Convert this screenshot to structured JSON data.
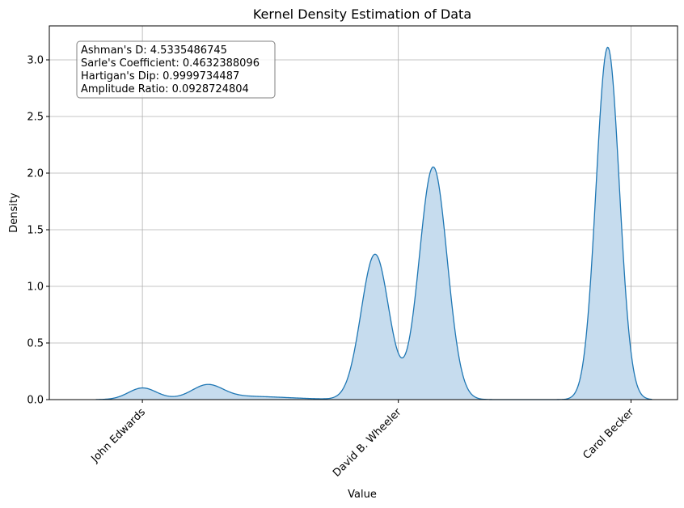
{
  "chart_data": {
    "type": "area",
    "title": "Kernel Density Estimation of Data",
    "xlabel": "Value",
    "ylabel": "Density",
    "xlim": [
      -0.4,
      2.3
    ],
    "ylim": [
      0,
      3.3
    ],
    "grid": true,
    "categories": [
      "John Edwards",
      "David B. Wheeler",
      "Carol Becker"
    ],
    "category_positions": [
      0,
      1.1,
      2.1
    ],
    "y_ticks": [
      0.0,
      0.5,
      1.0,
      1.5,
      2.0,
      2.5,
      3.0
    ],
    "y_tick_labels": [
      "0.0",
      "0.5",
      "1.0",
      "1.5",
      "2.0",
      "2.5",
      "3.0"
    ],
    "line_color": "#1f77b4",
    "fill_color": "#c6dcee",
    "series": [
      {
        "components": [
          {
            "mean": 0.0,
            "sd": 0.06,
            "weight": 0.015
          },
          {
            "mean": 0.28,
            "sd": 0.065,
            "weight": 0.018
          },
          {
            "mean": 0.42,
            "sd": 0.2,
            "weight": 0.015
          },
          {
            "mean": 1.0,
            "sd": 0.06,
            "weight": 0.193
          },
          {
            "mean": 1.25,
            "sd": 0.06,
            "weight": 0.309
          },
          {
            "mean": 2.0,
            "sd": 0.05,
            "weight": 0.39
          }
        ],
        "x_range": [
          -0.2,
          2.19
        ],
        "peaks": [
          {
            "x": 0.0,
            "y": 0.1
          },
          {
            "x": 0.28,
            "y": 0.11
          },
          {
            "x": 1.0,
            "y": 1.28
          },
          {
            "x": 1.25,
            "y": 2.06
          },
          {
            "x": 2.0,
            "y": 3.12
          }
        ]
      }
    ],
    "annotation": {
      "lines": [
        "Ashman's D: 4.5335486745",
        "Sarle's Coefficient: 0.4632388096",
        "Hartigan's Dip: 0.9999734487",
        "Amplitude Ratio: 0.0928724804"
      ],
      "position": "top-left"
    }
  }
}
